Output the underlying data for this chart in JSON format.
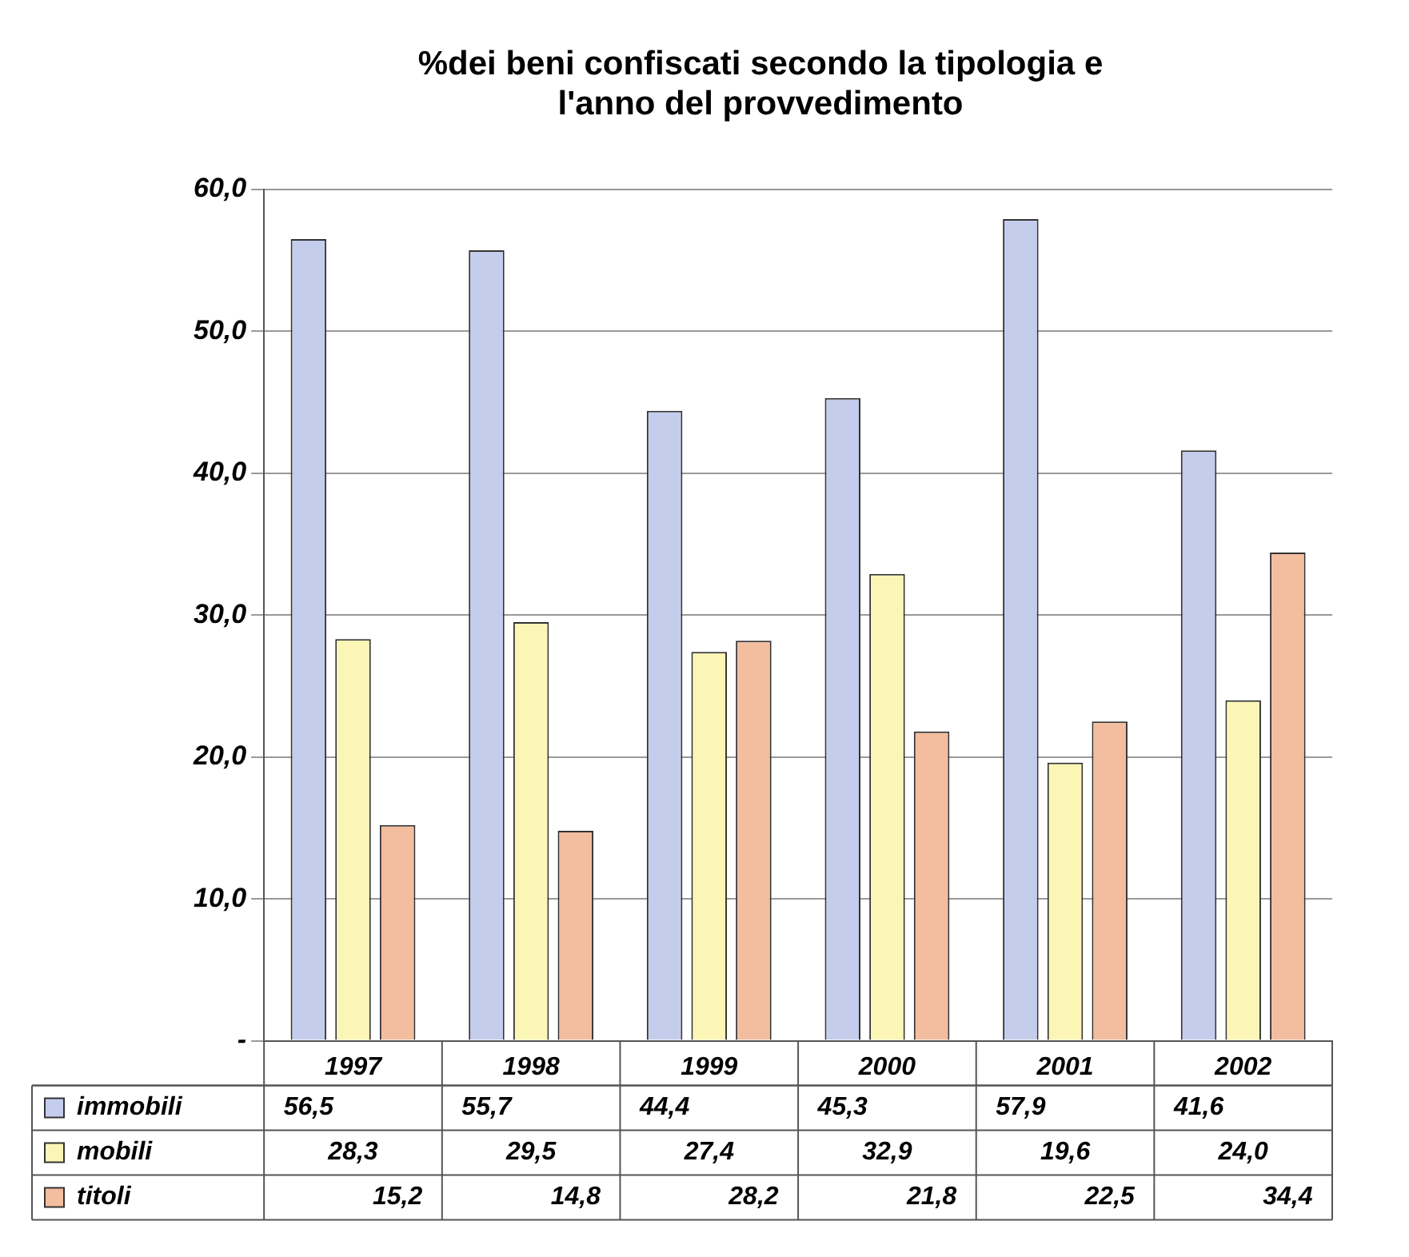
{
  "chart_data": {
    "type": "bar",
    "title": [
      "%dei beni confiscati secondo la tipologia e",
      "l'anno del provvedimento"
    ],
    "categories": [
      "1997",
      "1998",
      "1999",
      "2000",
      "2001",
      "2002"
    ],
    "series": [
      {
        "name": "immobili",
        "color": "#c5cdec",
        "values": [
          56.5,
          55.7,
          44.4,
          45.3,
          57.9,
          41.6
        ],
        "value_labels": [
          "56,5",
          "55,7",
          "44,4",
          "45,3",
          "57,9",
          "41,6"
        ]
      },
      {
        "name": "mobili",
        "color": "#fbf6b6",
        "values": [
          28.3,
          29.5,
          27.4,
          32.9,
          19.6,
          24.0
        ],
        "value_labels": [
          "28,3",
          "29,5",
          "27,4",
          "32,9",
          "19,6",
          "24,0"
        ]
      },
      {
        "name": "titoli",
        "color": "#f3bd9f",
        "values": [
          15.2,
          14.8,
          28.2,
          21.8,
          22.5,
          34.4
        ],
        "value_labels": [
          "15,2",
          "14,8",
          "28,2",
          "21,8",
          "22,5",
          "34,4"
        ]
      }
    ],
    "ylim": [
      0,
      60
    ],
    "yticks": [
      {
        "value": 0,
        "label": "-"
      },
      {
        "value": 10,
        "label": "10,0"
      },
      {
        "value": 20,
        "label": "20,0"
      },
      {
        "value": 30,
        "label": "30,0"
      },
      {
        "value": 40,
        "label": "40,0"
      },
      {
        "value": 50,
        "label": "50,0"
      },
      {
        "value": 60,
        "label": "60,0"
      }
    ],
    "grid": "y",
    "legend": "bottom"
  }
}
